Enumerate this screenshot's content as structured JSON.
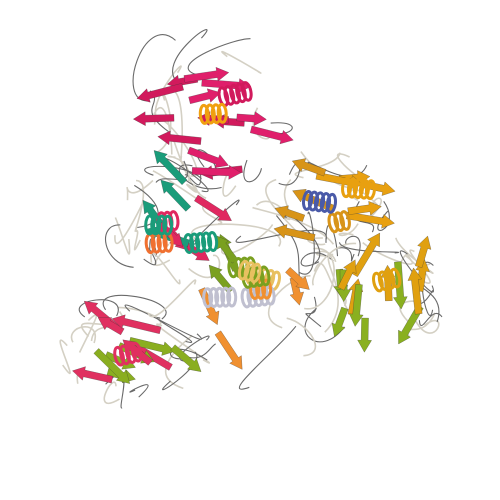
{
  "scene": {
    "background_color": "#ffffff",
    "subject": "ribbon-cartoon-protein-trimer",
    "style": "cartoon ribbon with helices, beta-strand arrows and coil loops",
    "domains": [
      {
        "name": "top-domain",
        "colors": [
          "#e01f6b",
          "#d11a5c",
          "#f0a010",
          "#0f9c7e"
        ]
      },
      {
        "name": "left-middle-domain",
        "colors": [
          "#e02860",
          "#1a9c7a",
          "#f07030"
        ]
      },
      {
        "name": "right-domain",
        "colors": [
          "#e8a010",
          "#d89418",
          "#4a5aa8"
        ]
      },
      {
        "name": "lower-right-domain",
        "colors": [
          "#8ab020",
          "#e0a010",
          "#a0b830"
        ]
      },
      {
        "name": "bottom-left-domain",
        "colors": [
          "#8aae20",
          "#e03060",
          "#c0c030"
        ]
      },
      {
        "name": "center-core",
        "colors": [
          "#f09030",
          "#7aa020",
          "#e8c060",
          "#c0c0d0"
        ]
      }
    ],
    "coil_color": "#6a6a6a",
    "pale_coil_color": "#d4d0c4"
  }
}
